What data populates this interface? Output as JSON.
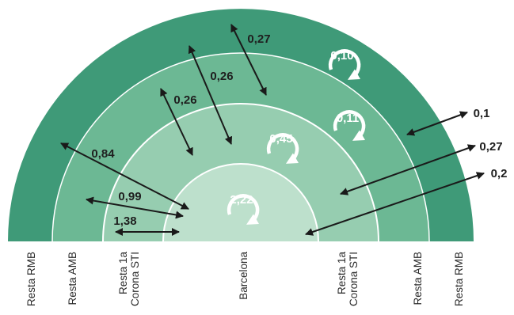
{
  "colors": {
    "ring_rmb": "#3f9a78",
    "ring_amb": "#6cb894",
    "ring_corona": "#96cdb0",
    "ring_barcelona": "#bde0cc",
    "boundary": "#ffffff",
    "arrow": "#1a1a1a",
    "text": "#1f1f1f",
    "cycle_text": "#ffffff"
  },
  "zones": [
    {
      "key": "barcelona",
      "label": "Barcelona"
    },
    {
      "key": "corona",
      "label": "Resta 1a Corona STI"
    },
    {
      "key": "amb",
      "label": "Resta AMB"
    },
    {
      "key": "rmb",
      "label": "Resta RMB"
    }
  ],
  "axis_labels": [
    {
      "id": "rmb-left",
      "lines": [
        "Resta RMB"
      ]
    },
    {
      "id": "amb-left",
      "lines": [
        "Resta AMB"
      ]
    },
    {
      "id": "corona-left",
      "lines": [
        "Resta 1a",
        "Corona STI"
      ]
    },
    {
      "id": "barcelona",
      "lines": [
        "Barcelona"
      ]
    },
    {
      "id": "corona-right",
      "lines": [
        "Resta 1a",
        "Corona STI"
      ]
    },
    {
      "id": "amb-right",
      "lines": [
        "Resta AMB"
      ]
    },
    {
      "id": "rmb-right",
      "lines": [
        "Resta RMB"
      ]
    }
  ],
  "internal_flows": [
    {
      "zone": "barcelona",
      "value": "2,22"
    },
    {
      "zone": "corona",
      "value": "0,45"
    },
    {
      "zone": "amb",
      "value": "0,11"
    },
    {
      "zone": "rmb",
      "value": "0,10"
    }
  ],
  "flows": [
    {
      "from": "barcelona",
      "to": "corona",
      "value": "1,38"
    },
    {
      "from": "barcelona",
      "to": "amb",
      "value": "0,99"
    },
    {
      "from": "barcelona",
      "to": "rmb",
      "value": "0,84"
    },
    {
      "from": "corona",
      "to": "amb",
      "value": "0,26"
    },
    {
      "from": "corona",
      "to": "rmb",
      "value": "0,26"
    },
    {
      "from": "amb",
      "to": "rmb",
      "value": "0,27"
    },
    {
      "from": "rmb",
      "to": "outside",
      "value": "0,1"
    },
    {
      "from": "corona",
      "to": "outside",
      "value": "0,27"
    },
    {
      "from": "barcelona",
      "to": "outside",
      "value": "0,2"
    }
  ]
}
